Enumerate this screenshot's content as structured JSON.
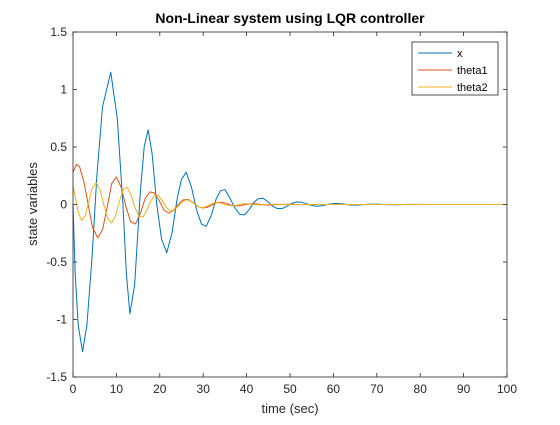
{
  "chart_data": {
    "type": "line",
    "title": "Non-Linear system using LQR controller",
    "xlabel": "time (sec)",
    "ylabel": "state variables",
    "xlim": [
      0,
      100
    ],
    "ylim": [
      -1.5,
      1.5
    ],
    "xticks": [
      0,
      10,
      20,
      30,
      40,
      50,
      60,
      70,
      80,
      90,
      100
    ],
    "yticks": [
      -1.5,
      -1,
      -0.5,
      0,
      0.5,
      1,
      1.5
    ],
    "xtick_labels": [
      "0",
      "10",
      "20",
      "30",
      "40",
      "50",
      "60",
      "70",
      "80",
      "90",
      "100"
    ],
    "ytick_labels": [
      "-1.5",
      "-1",
      "-0.5",
      "0",
      "0.5",
      "1",
      "1.5"
    ],
    "grid": false,
    "legend_position": "top-right",
    "series": [
      {
        "name": "x",
        "color": "#0072BD",
        "points": [
          [
            0,
            0
          ],
          [
            0.5,
            -0.6
          ],
          [
            1.2,
            -1.05
          ],
          [
            2.2,
            -1.28
          ],
          [
            3.2,
            -1.05
          ],
          [
            4.4,
            -0.45
          ],
          [
            5.5,
            0.25
          ],
          [
            6.8,
            0.85
          ],
          [
            8.7,
            1.15
          ],
          [
            10.2,
            0.75
          ],
          [
            11.5,
            0.0
          ],
          [
            12.3,
            -0.6
          ],
          [
            13.1,
            -0.95
          ],
          [
            14.2,
            -0.7
          ],
          [
            15.5,
            0.1
          ],
          [
            16.4,
            0.5
          ],
          [
            17.3,
            0.65
          ],
          [
            18.2,
            0.45
          ],
          [
            19.3,
            0.0
          ],
          [
            20.4,
            -0.3
          ],
          [
            21.6,
            -0.42
          ],
          [
            22.8,
            -0.25
          ],
          [
            24.0,
            0.05
          ],
          [
            25.0,
            0.22
          ],
          [
            26.1,
            0.28
          ],
          [
            27.3,
            0.15
          ],
          [
            28.5,
            -0.05
          ],
          [
            29.6,
            -0.17
          ],
          [
            30.7,
            -0.19
          ],
          [
            31.8,
            -0.1
          ],
          [
            33.0,
            0.05
          ],
          [
            34.0,
            0.12
          ],
          [
            35.0,
            0.13
          ],
          [
            36.1,
            0.06
          ],
          [
            37.3,
            -0.03
          ],
          [
            38.4,
            -0.085
          ],
          [
            39.5,
            -0.09
          ],
          [
            40.6,
            -0.045
          ],
          [
            41.7,
            0.02
          ],
          [
            42.7,
            0.05
          ],
          [
            43.8,
            0.055
          ],
          [
            44.9,
            0.025
          ],
          [
            46.0,
            -0.015
          ],
          [
            47.1,
            -0.035
          ],
          [
            48.2,
            -0.035
          ],
          [
            49.3,
            -0.015
          ],
          [
            50.4,
            0.01
          ],
          [
            51.5,
            0.022
          ],
          [
            52.6,
            0.02
          ],
          [
            53.7,
            0.008
          ],
          [
            54.8,
            -0.006
          ],
          [
            55.9,
            -0.014
          ],
          [
            57.0,
            -0.013
          ],
          [
            58.1,
            -0.005
          ],
          [
            59.2,
            0.004
          ],
          [
            60.3,
            0.009
          ],
          [
            61.4,
            0.008
          ],
          [
            62.5,
            0.003
          ],
          [
            63.6,
            -0.003
          ],
          [
            64.7,
            -0.005
          ],
          [
            65.8,
            -0.004
          ],
          [
            68.0,
            0.002
          ],
          [
            70.2,
            0.003
          ],
          [
            72.4,
            -0.001
          ],
          [
            74.6,
            -0.002
          ],
          [
            76.8,
            0.001
          ],
          [
            79.0,
            0.001
          ],
          [
            82.0,
            0.0
          ],
          [
            86.0,
            0.0
          ],
          [
            90.0,
            0.0
          ],
          [
            95.0,
            0.0
          ],
          [
            100.0,
            0.0
          ]
        ]
      },
      {
        "name": "theta1",
        "color": "#D95319",
        "points": [
          [
            0,
            0.28
          ],
          [
            0.8,
            0.35
          ],
          [
            1.5,
            0.33
          ],
          [
            2.5,
            0.2
          ],
          [
            3.5,
            0.0
          ],
          [
            4.5,
            -0.2
          ],
          [
            5.7,
            -0.29
          ],
          [
            6.8,
            -0.22
          ],
          [
            7.9,
            -0.02
          ],
          [
            8.9,
            0.18
          ],
          [
            10.0,
            0.24
          ],
          [
            11.1,
            0.15
          ],
          [
            12.2,
            -0.02
          ],
          [
            13.3,
            -0.15
          ],
          [
            14.4,
            -0.17
          ],
          [
            15.5,
            -0.08
          ],
          [
            16.6,
            0.05
          ],
          [
            17.7,
            0.11
          ],
          [
            18.8,
            0.1
          ],
          [
            19.9,
            0.03
          ],
          [
            21.0,
            -0.05
          ],
          [
            22.1,
            -0.075
          ],
          [
            23.2,
            -0.05
          ],
          [
            24.3,
            0.0
          ],
          [
            25.4,
            0.04
          ],
          [
            26.5,
            0.045
          ],
          [
            27.6,
            0.02
          ],
          [
            28.7,
            -0.015
          ],
          [
            29.8,
            -0.03
          ],
          [
            30.9,
            -0.025
          ],
          [
            32.0,
            -0.005
          ],
          [
            33.1,
            0.015
          ],
          [
            34.2,
            0.02
          ],
          [
            35.3,
            0.01
          ],
          [
            36.4,
            -0.005
          ],
          [
            37.5,
            -0.012
          ],
          [
            38.6,
            -0.01
          ],
          [
            39.7,
            0.0
          ],
          [
            40.8,
            0.007
          ],
          [
            41.9,
            0.007
          ],
          [
            43.0,
            0.002
          ],
          [
            44.1,
            -0.003
          ],
          [
            45.2,
            -0.004
          ],
          [
            47.4,
            0.0
          ],
          [
            49.6,
            0.002
          ],
          [
            51.8,
            0.0
          ],
          [
            54.0,
            -0.001
          ],
          [
            57.0,
            0.0
          ],
          [
            62.0,
            0.0
          ],
          [
            70.0,
            0.0
          ],
          [
            80.0,
            0.0
          ],
          [
            90.0,
            0.0
          ],
          [
            100.0,
            0.0
          ]
        ]
      },
      {
        "name": "theta2",
        "color": "#EDB120",
        "points": [
          [
            0,
            0.16
          ],
          [
            0.6,
            0.05
          ],
          [
            1.3,
            -0.08
          ],
          [
            2.0,
            -0.14
          ],
          [
            2.8,
            -0.1
          ],
          [
            3.6,
            0.02
          ],
          [
            4.4,
            0.14
          ],
          [
            5.3,
            0.19
          ],
          [
            6.2,
            0.13
          ],
          [
            7.1,
            0.0
          ],
          [
            8.0,
            -0.12
          ],
          [
            8.9,
            -0.16
          ],
          [
            9.8,
            -0.1
          ],
          [
            10.7,
            0.03
          ],
          [
            11.6,
            0.13
          ],
          [
            12.5,
            0.15
          ],
          [
            13.4,
            0.08
          ],
          [
            14.3,
            -0.03
          ],
          [
            15.2,
            -0.1
          ],
          [
            16.1,
            -0.11
          ],
          [
            17.0,
            -0.05
          ],
          [
            17.9,
            0.03
          ],
          [
            18.8,
            0.08
          ],
          [
            19.7,
            0.08
          ],
          [
            20.6,
            0.03
          ],
          [
            21.5,
            -0.025
          ],
          [
            22.4,
            -0.055
          ],
          [
            23.3,
            -0.05
          ],
          [
            24.2,
            -0.015
          ],
          [
            25.1,
            0.02
          ],
          [
            26.0,
            0.04
          ],
          [
            26.9,
            0.035
          ],
          [
            27.8,
            0.01
          ],
          [
            28.7,
            -0.015
          ],
          [
            29.6,
            -0.028
          ],
          [
            30.5,
            -0.022
          ],
          [
            31.4,
            -0.005
          ],
          [
            32.3,
            0.012
          ],
          [
            33.2,
            0.018
          ],
          [
            34.1,
            0.012
          ],
          [
            35.0,
            0.0
          ],
          [
            35.9,
            -0.009
          ],
          [
            36.8,
            -0.011
          ],
          [
            37.7,
            -0.006
          ],
          [
            38.6,
            0.002
          ],
          [
            39.5,
            0.006
          ],
          [
            40.4,
            0.006
          ],
          [
            41.3,
            0.002
          ],
          [
            43.1,
            -0.003
          ],
          [
            44.9,
            0.0
          ],
          [
            46.7,
            0.002
          ],
          [
            48.5,
            0.0
          ],
          [
            50.3,
            -0.001
          ],
          [
            53.0,
            0.0
          ],
          [
            58.0,
            0.0
          ],
          [
            65.0,
            0.0
          ],
          [
            75.0,
            0.0
          ],
          [
            85.0,
            0.0
          ],
          [
            100.0,
            0.0
          ]
        ]
      }
    ]
  }
}
